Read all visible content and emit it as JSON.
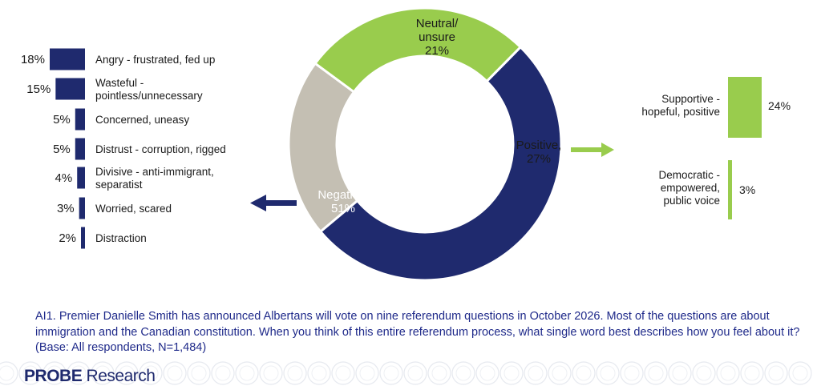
{
  "chart_data": [
    {
      "type": "pie",
      "variant": "donut",
      "categories": [
        "Neutral/\nunsure",
        "Positive,",
        "Negative,"
      ],
      "values": [
        21,
        27,
        51
      ],
      "value_labels": [
        "21%",
        "27%",
        "51%"
      ],
      "colors": [
        "#c4bfb3",
        "#99cc4d",
        "#1f2a6e"
      ]
    },
    {
      "type": "bar",
      "orientation": "horizontal",
      "group": "Negative",
      "categories": [
        "Angry - frustrated, fed up",
        "Wasteful -\npointless/unnecessary",
        "Concerned, uneasy",
        "Distrust - corruption, rigged",
        "Divisive - anti-immigrant,\nseparatist",
        "Worried, scared",
        "Distraction"
      ],
      "values": [
        18,
        15,
        5,
        5,
        4,
        3,
        2
      ],
      "value_labels": [
        "18%",
        "15%",
        "5%",
        "5%",
        "4%",
        "3%",
        "2%"
      ],
      "color": "#1f2a6e"
    },
    {
      "type": "bar",
      "orientation": "vertical",
      "group": "Positive",
      "categories": [
        "Supportive -\nhopeful, positive",
        "Democratic -\nempowered,\npublic voice"
      ],
      "values": [
        24,
        3
      ],
      "value_labels": [
        "24%",
        "3%"
      ],
      "color": "#99cc4d"
    }
  ],
  "question": "AI1. Premier Danielle Smith has announced Albertans will vote on nine referendum questions in October 2026. Most of the questions are about immigration and the Canadian constitution. When you think of this entire referendum process, what single word best describes how you feel about it? (Base: All respondents, N=1,484)",
  "brand": {
    "probe": "PR",
    "probe_mid": "O",
    "probe_end": "BE",
    "research": " Research"
  },
  "colors": {
    "navy": "#1f2a6e",
    "green": "#99cc4d",
    "grey": "#c4bfb3",
    "question_text": "#1f2a8a"
  }
}
